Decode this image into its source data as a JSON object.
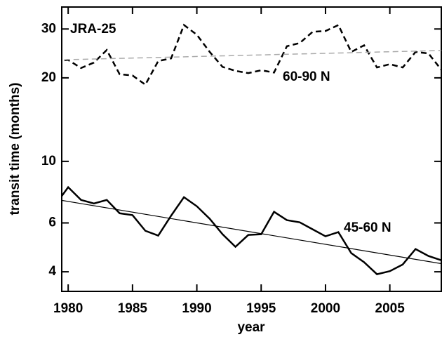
{
  "chart_data": {
    "type": "line",
    "xlabel": "year",
    "ylabel": "transit time (months)",
    "annotation": "JRA-25",
    "ylog": true,
    "xlim": [
      1979.5,
      2009
    ],
    "xticks": [
      1980,
      1985,
      1990,
      1995,
      2000,
      2005
    ],
    "ylim": [
      3.4,
      36
    ],
    "yticks": [
      4,
      6,
      10,
      20,
      30
    ],
    "series": [
      {
        "name": "60-90 N",
        "color": "#000000",
        "dashed": true,
        "width": 2.5,
        "x": [
          1979,
          1980,
          1981,
          1982,
          1983,
          1984,
          1985,
          1986,
          1987,
          1988,
          1989,
          1990,
          1991,
          1992,
          1993,
          1994,
          1995,
          1996,
          1997,
          1998,
          1999,
          2000,
          2001,
          2002,
          2003,
          2004,
          2005,
          2006,
          2007,
          2008,
          2009
        ],
        "values": [
          23.0,
          23.2,
          21.7,
          22.7,
          25.2,
          20.6,
          20.4,
          18.9,
          23.0,
          23.5,
          31.0,
          28.6,
          24.8,
          21.9,
          21.2,
          20.8,
          21.3,
          20.9,
          26.0,
          26.7,
          29.3,
          29.5,
          31.0,
          24.8,
          26.2,
          21.8,
          22.4,
          21.8,
          24.8,
          24.5,
          21.4
        ]
      },
      {
        "name": "45-60 N",
        "color": "#000000",
        "dashed": false,
        "width": 2.5,
        "x": [
          1979,
          1980,
          1981,
          1982,
          1983,
          1984,
          1985,
          1986,
          1987,
          1988,
          1989,
          1990,
          1991,
          1992,
          1993,
          1994,
          1995,
          1996,
          1997,
          1998,
          1999,
          2000,
          2001,
          2002,
          2003,
          2004,
          2005,
          2006,
          2007,
          2008,
          2009
        ],
        "values": [
          6.97,
          8.07,
          7.26,
          7.05,
          7.26,
          6.5,
          6.4,
          5.62,
          5.4,
          6.37,
          7.43,
          6.89,
          6.21,
          5.46,
          4.92,
          5.43,
          5.46,
          6.58,
          6.14,
          6.03,
          5.69,
          5.37,
          5.56,
          4.67,
          4.33,
          3.92,
          4.02,
          4.25,
          4.83,
          4.56,
          4.4
        ]
      },
      {
        "color": "#aaaaaa",
        "dashed": true,
        "width": 1.5,
        "x": [
          1979,
          2009
        ],
        "values": [
          23.2,
          25.1
        ]
      },
      {
        "color": "#000000",
        "dashed": false,
        "width": 1.2,
        "x": [
          1979,
          2009
        ],
        "values": [
          7.3,
          4.28
        ]
      }
    ]
  }
}
